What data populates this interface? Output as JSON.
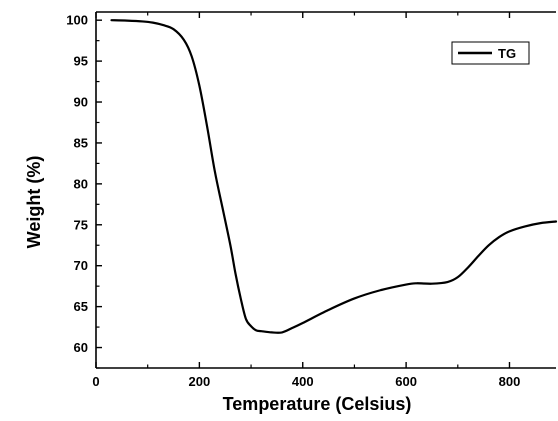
{
  "chart_data": {
    "type": "line",
    "xlabel": "Temperature (Celsius)",
    "ylabel": "Weight (%)",
    "xlim": [
      0,
      890
    ],
    "ylim": [
      57.5,
      101
    ],
    "xticks": [
      0,
      200,
      400,
      600,
      800
    ],
    "yticks": [
      60,
      65,
      70,
      75,
      80,
      85,
      90,
      95,
      100
    ],
    "grid": false,
    "legend_position": "top-right",
    "series": [
      {
        "name": "TG",
        "color": "#000000",
        "x": [
          30,
          60,
          90,
          110,
          130,
          150,
          170,
          185,
          200,
          215,
          230,
          245,
          260,
          270,
          280,
          290,
          300,
          310,
          320,
          340,
          360,
          380,
          400,
          450,
          500,
          550,
          600,
          620,
          650,
          680,
          700,
          720,
          740,
          760,
          780,
          800,
          830,
          860,
          890
        ],
        "y": [
          100.0,
          99.95,
          99.85,
          99.7,
          99.4,
          98.9,
          97.6,
          95.6,
          92.0,
          87.0,
          81.5,
          77.0,
          72.5,
          69.0,
          66.0,
          63.5,
          62.6,
          62.1,
          62.0,
          61.85,
          61.85,
          62.4,
          63.0,
          64.6,
          66.0,
          67.0,
          67.7,
          67.85,
          67.8,
          68.0,
          68.6,
          69.8,
          71.2,
          72.5,
          73.5,
          74.2,
          74.8,
          75.2,
          75.4
        ]
      }
    ]
  }
}
